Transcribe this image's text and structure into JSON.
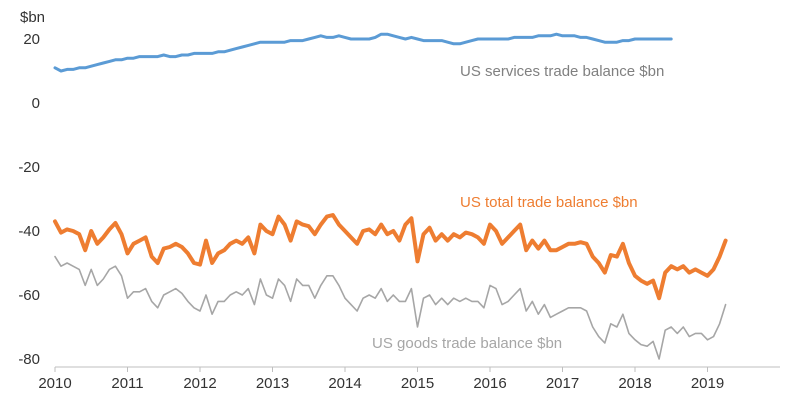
{
  "chart_data": {
    "type": "line",
    "ylabel": "$bn",
    "ylim": [
      -80,
      25
    ],
    "yticks": [
      20,
      0,
      -20,
      -40,
      -60,
      -80
    ],
    "xticks": [
      "2010",
      "2011",
      "2012",
      "2013",
      "2014",
      "2015",
      "2016",
      "2017",
      "2018",
      "2019"
    ],
    "xlim": [
      2010,
      2020
    ],
    "grid": false,
    "series": [
      {
        "name": "US services trade balance $bn",
        "color": "#5b9bd5",
        "start": 2010.0,
        "step": 0.08333,
        "values": [
          11,
          10,
          10.5,
          10.5,
          11,
          11,
          11.5,
          12,
          12.5,
          13,
          13.5,
          13.5,
          14,
          14,
          14.5,
          14.5,
          14.5,
          14.5,
          15,
          14.5,
          14.5,
          15,
          15,
          15.5,
          15.5,
          15.5,
          15.5,
          16,
          16,
          16.5,
          17,
          17.5,
          18,
          18.5,
          19,
          19,
          19,
          19,
          19,
          19.5,
          19.5,
          19.5,
          20,
          20.5,
          21,
          20.5,
          20.5,
          21,
          20.5,
          20,
          20,
          20,
          20,
          20.5,
          21.5,
          21.5,
          21,
          20.5,
          20,
          20.5,
          20,
          19.5,
          19.5,
          19.5,
          19.5,
          19,
          18.5,
          18.5,
          19,
          19.5,
          20,
          20,
          20,
          20,
          20,
          20,
          20.5,
          20.5,
          20.5,
          20.5,
          21,
          21,
          21,
          21.5,
          21,
          21,
          21,
          20.5,
          20.5,
          20,
          19.5,
          19,
          19,
          19,
          19.5,
          19.5,
          20,
          20,
          20,
          20,
          20,
          20,
          20
        ]
      },
      {
        "name": "US total trade balance $bn",
        "color": "#ee7d31",
        "start": 2010.0,
        "step": 0.08333,
        "values": [
          -37,
          -40.5,
          -39.5,
          -40,
          -41,
          -46,
          -40,
          -44,
          -42,
          -39.5,
          -37.5,
          -41,
          -47,
          -44,
          -43,
          -42,
          -48,
          -50,
          -45.5,
          -45,
          -44,
          -45,
          -47,
          -50,
          -50.5,
          -43,
          -50,
          -47,
          -46,
          -44,
          -43,
          -44,
          -42,
          -47,
          -38,
          -40,
          -41,
          -35.5,
          -38,
          -43,
          -37,
          -38,
          -38.5,
          -41,
          -38,
          -35.5,
          -35,
          -38,
          -40,
          -42,
          -44,
          -40,
          -39.5,
          -41,
          -38,
          -41,
          -40,
          -43,
          -38,
          -36,
          -49.5,
          -41,
          -39,
          -43,
          -41,
          -43,
          -41,
          -42,
          -40.5,
          -41,
          -42,
          -44,
          -38,
          -40,
          -44,
          -42,
          -40,
          -38,
          -46,
          -43,
          -45.5,
          -43,
          -46,
          -46,
          -45,
          -44,
          -44,
          -43.5,
          -44,
          -48,
          -50,
          -53,
          -47.5,
          -48,
          -44,
          -50,
          -54,
          -55.5,
          -56.5,
          -55.5,
          -61,
          -53,
          -51,
          -52,
          -51,
          -53,
          -52,
          -53,
          -54,
          -52,
          -48,
          -43
        ]
      },
      {
        "name": "US goods trade balance $bn",
        "color": "#a6a6a6",
        "start": 2010.0,
        "step": 0.08333,
        "values": [
          -48,
          -51,
          -50,
          -51,
          -52,
          -57,
          -52,
          -57,
          -55,
          -52,
          -51,
          -54,
          -61,
          -59,
          -59,
          -58,
          -62,
          -64,
          -60,
          -59,
          -58,
          -59.5,
          -62,
          -64,
          -65,
          -60,
          -66,
          -62,
          -62,
          -60,
          -59,
          -60,
          -58,
          -63,
          -55,
          -60,
          -61,
          -55,
          -57,
          -62,
          -55,
          -57,
          -57,
          -61,
          -57,
          -54,
          -54,
          -57,
          -61,
          -63,
          -65,
          -61,
          -60,
          -61,
          -58,
          -62,
          -60,
          -62,
          -62,
          -58,
          -70,
          -61,
          -60,
          -63,
          -61,
          -63,
          -61,
          -62,
          -61,
          -62,
          -62,
          -64,
          -57,
          -58,
          -63,
          -62,
          -60,
          -58,
          -65,
          -62,
          -66,
          -63,
          -67,
          -66,
          -65,
          -64,
          -64,
          -64,
          -65,
          -70,
          -73,
          -75,
          -69,
          -70,
          -66,
          -72,
          -74,
          -75.5,
          -76,
          -74.5,
          -80,
          -71,
          -70,
          -72,
          -70,
          -73,
          -72,
          -72,
          -74,
          -73,
          -69,
          -63
        ]
      }
    ],
    "annotations": [
      {
        "text": "US services trade balance $bn",
        "color": "#808080"
      },
      {
        "text": "US total trade balance $bn",
        "color": "#ee7d31"
      },
      {
        "text": "US goods trade balance $bn",
        "color": "#a6a6a6"
      }
    ]
  }
}
